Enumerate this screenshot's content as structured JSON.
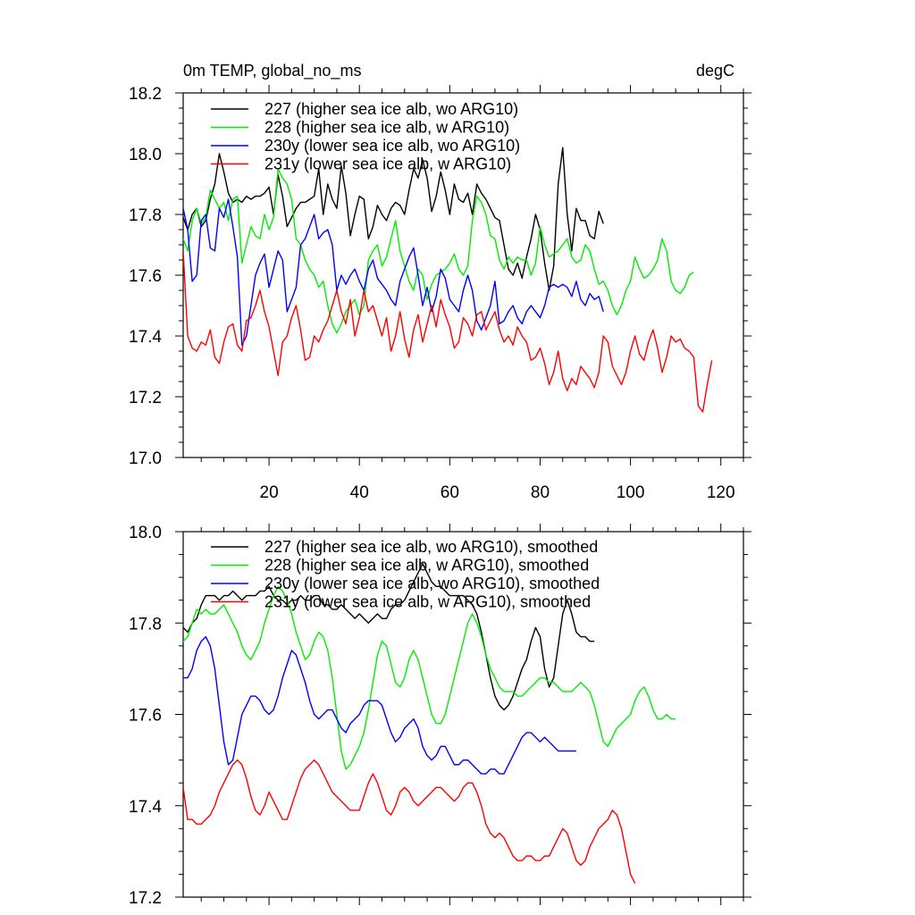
{
  "chart_data": [
    {
      "type": "line",
      "title_left": "0m TEMP, global_no_ms",
      "title_right": "degC",
      "xlabel": "",
      "ylabel": "",
      "xlim": [
        1,
        125
      ],
      "ylim": [
        17.0,
        18.2
      ],
      "x_ticks": [
        20,
        40,
        60,
        80,
        100,
        120
      ],
      "x_tick_labels": [
        "20",
        "40",
        "60",
        "80",
        "100",
        "120"
      ],
      "y_ticks": [
        17.0,
        17.2,
        17.4,
        17.6,
        17.8,
        18.0,
        18.2
      ],
      "y_tick_labels": [
        "17.0",
        "17.2",
        "17.4",
        "17.6",
        "17.8",
        "18.0",
        "18.2"
      ],
      "legend_position": "top-left",
      "series": [
        {
          "name": "227 (higher sea ice alb, wo ARG10)",
          "color": "#000000",
          "values": [
            17.79,
            17.75,
            17.8,
            17.82,
            17.76,
            17.78,
            17.85,
            17.9,
            18.0,
            17.94,
            17.87,
            17.84,
            17.85,
            17.84,
            17.86,
            17.85,
            17.86,
            17.86,
            17.87,
            17.89,
            17.8,
            17.93,
            17.86,
            17.76,
            17.79,
            17.82,
            17.84,
            17.84,
            17.85,
            17.86,
            17.95,
            17.8,
            17.9,
            17.85,
            17.82,
            17.96,
            17.87,
            17.73,
            17.8,
            17.86,
            17.85,
            17.72,
            17.76,
            17.83,
            17.8,
            17.78,
            17.82,
            17.84,
            17.83,
            17.8,
            17.88,
            17.95,
            17.92,
            17.98,
            17.92,
            17.81,
            17.86,
            17.94,
            17.88,
            17.8,
            17.9,
            17.85,
            17.84,
            17.87,
            17.8,
            17.9,
            17.87,
            17.85,
            17.82,
            17.79,
            17.78,
            17.7,
            17.62,
            17.6,
            17.64,
            17.59,
            17.66,
            17.72,
            17.8,
            17.75,
            17.64,
            17.55,
            17.63,
            17.9,
            18.02,
            17.8,
            17.68,
            17.82,
            17.78,
            17.78,
            17.73,
            17.72,
            17.81,
            17.77
          ]
        },
        {
          "name": "228 (higher sea ice alb, w ARG10)",
          "color": "#00ee00",
          "values": [
            17.72,
            17.68,
            17.78,
            17.82,
            17.77,
            17.79,
            17.88,
            17.85,
            17.82,
            17.84,
            17.78,
            17.85,
            17.86,
            17.64,
            17.7,
            17.76,
            17.73,
            17.72,
            17.8,
            17.75,
            17.79,
            17.95,
            17.92,
            17.9,
            17.85,
            17.72,
            17.7,
            17.65,
            17.62,
            17.6,
            17.56,
            17.58,
            17.5,
            17.44,
            17.41,
            17.44,
            17.48,
            17.5,
            17.52,
            17.47,
            17.5,
            17.65,
            17.68,
            17.7,
            17.63,
            17.66,
            17.72,
            17.78,
            17.68,
            17.63,
            17.58,
            17.55,
            17.62,
            17.6,
            17.52,
            17.57,
            17.6,
            17.61,
            17.62,
            17.64,
            17.67,
            17.62,
            17.6,
            17.63,
            17.78,
            17.86,
            17.84,
            17.8,
            17.73,
            17.72,
            17.65,
            17.62,
            17.66,
            17.64,
            17.66,
            17.65,
            17.65,
            17.6,
            17.64,
            17.76,
            17.7,
            17.66,
            17.67,
            17.68,
            17.7,
            17.72,
            17.66,
            17.64,
            17.65,
            17.7,
            17.68,
            17.62,
            17.57,
            17.58,
            17.55,
            17.5,
            17.47,
            17.5,
            17.55,
            17.58,
            17.66,
            17.62,
            17.59,
            17.6,
            17.62,
            17.65,
            17.72,
            17.68,
            17.58,
            17.55,
            17.54,
            17.56,
            17.6,
            17.61
          ]
        },
        {
          "name": "230y (lower sea ice alb, wo ARG10)",
          "color": "#0000ff",
          "values": [
            17.82,
            17.75,
            17.58,
            17.6,
            17.78,
            17.8,
            17.69,
            17.68,
            17.82,
            17.79,
            17.85,
            17.76,
            17.66,
            17.37,
            17.4,
            17.5,
            17.6,
            17.64,
            17.67,
            17.56,
            17.62,
            17.68,
            17.65,
            17.48,
            17.52,
            17.56,
            17.7,
            17.72,
            17.76,
            17.8,
            17.72,
            17.74,
            17.75,
            17.7,
            17.55,
            17.6,
            17.57,
            17.6,
            17.62,
            17.58,
            17.55,
            17.62,
            17.65,
            17.59,
            17.57,
            17.55,
            17.52,
            17.5,
            17.58,
            17.62,
            17.66,
            17.69,
            17.6,
            17.5,
            17.56,
            17.48,
            17.53,
            17.62,
            17.59,
            17.52,
            17.5,
            17.48,
            17.55,
            17.6,
            17.55,
            17.45,
            17.42,
            17.46,
            17.5,
            17.58,
            17.44,
            17.45,
            17.48,
            17.5,
            17.46,
            17.44,
            17.48,
            17.5,
            17.48,
            17.46,
            17.5,
            17.56,
            17.57,
            17.56,
            17.57,
            17.56,
            17.53,
            17.58,
            17.52,
            17.5,
            17.54,
            17.52,
            17.53,
            17.48
          ]
        },
        {
          "name": "231y (lower sea ice alb, w ARG10)",
          "color": "#ff0000",
          "values": [
            17.68,
            17.4,
            17.36,
            17.35,
            17.38,
            17.37,
            17.42,
            17.33,
            17.31,
            17.38,
            17.43,
            17.44,
            17.37,
            17.35,
            17.45,
            17.46,
            17.5,
            17.55,
            17.48,
            17.43,
            17.35,
            17.27,
            17.38,
            17.4,
            17.46,
            17.5,
            17.42,
            17.32,
            17.33,
            17.4,
            17.38,
            17.42,
            17.45,
            17.5,
            17.55,
            17.48,
            17.44,
            17.52,
            17.4,
            17.46,
            17.55,
            17.48,
            17.5,
            17.45,
            17.4,
            17.46,
            17.35,
            17.4,
            17.48,
            17.39,
            17.33,
            17.42,
            17.47,
            17.38,
            17.44,
            17.5,
            17.43,
            17.52,
            17.47,
            17.43,
            17.36,
            17.38,
            17.46,
            17.44,
            17.4,
            17.47,
            17.48,
            17.42,
            17.45,
            17.48,
            17.42,
            17.38,
            17.4,
            17.37,
            17.43,
            17.4,
            17.38,
            17.32,
            17.33,
            17.36,
            17.31,
            17.24,
            17.28,
            17.35,
            17.26,
            17.22,
            17.26,
            17.24,
            17.3,
            17.28,
            17.26,
            17.23,
            17.28,
            17.4,
            17.38,
            17.3,
            17.27,
            17.24,
            17.28,
            17.35,
            17.4,
            17.34,
            17.32,
            17.38,
            17.42,
            17.36,
            17.28,
            17.33,
            17.4,
            17.38,
            17.39,
            17.36,
            17.35,
            17.33,
            17.17,
            17.15,
            17.24,
            17.32
          ]
        }
      ]
    },
    {
      "type": "line",
      "title": "",
      "xlabel": "",
      "ylabel": "",
      "xlim": [
        1,
        125
      ],
      "ylim": [
        17.2,
        18.0
      ],
      "x_ticks": [
        20,
        40,
        60,
        80,
        100,
        120
      ],
      "y_ticks": [
        17.2,
        17.4,
        17.6,
        17.8,
        18.0
      ],
      "y_tick_labels": [
        "17.2",
        "17.4",
        "17.6",
        "17.8",
        "18.0"
      ],
      "legend_position": "top-left",
      "series": [
        {
          "name": "227 (higher sea ice alb, wo ARG10), smoothed",
          "color": "#000000",
          "values": [
            17.79,
            17.78,
            17.8,
            17.81,
            17.84,
            17.86,
            17.86,
            17.86,
            17.85,
            17.86,
            17.86,
            17.87,
            17.86,
            17.85,
            17.86,
            17.86,
            17.86,
            17.87,
            17.87,
            17.88,
            17.86,
            17.85,
            17.85,
            17.84,
            17.85,
            17.85,
            17.86,
            17.85,
            17.85,
            17.86,
            17.86,
            17.84,
            17.84,
            17.83,
            17.83,
            17.84,
            17.83,
            17.82,
            17.81,
            17.82,
            17.81,
            17.8,
            17.81,
            17.82,
            17.81,
            17.81,
            17.83,
            17.84,
            17.84,
            17.85,
            17.87,
            17.89,
            17.91,
            17.93,
            17.91,
            17.89,
            17.88,
            17.88,
            17.87,
            17.86,
            17.86,
            17.86,
            17.86,
            17.85,
            17.84,
            17.82,
            17.78,
            17.73,
            17.68,
            17.64,
            17.62,
            17.61,
            17.62,
            17.64,
            17.67,
            17.7,
            17.72,
            17.76,
            17.79,
            17.77,
            17.7,
            17.66,
            17.68,
            17.75,
            17.82,
            17.85,
            17.82,
            17.78,
            17.77,
            17.77,
            17.76,
            17.76
          ]
        },
        {
          "name": "228 (higher sea ice alb, w ARG10), smoothed",
          "color": "#00ee00",
          "values": [
            17.76,
            17.77,
            17.8,
            17.83,
            17.82,
            17.83,
            17.82,
            17.82,
            17.83,
            17.84,
            17.82,
            17.8,
            17.78,
            17.75,
            17.73,
            17.72,
            17.74,
            17.76,
            17.8,
            17.83,
            17.86,
            17.88,
            17.87,
            17.85,
            17.82,
            17.78,
            17.75,
            17.72,
            17.73,
            17.76,
            17.78,
            17.77,
            17.74,
            17.68,
            17.6,
            17.52,
            17.48,
            17.49,
            17.51,
            17.53,
            17.56,
            17.61,
            17.67,
            17.73,
            17.76,
            17.75,
            17.71,
            17.67,
            17.66,
            17.68,
            17.72,
            17.74,
            17.72,
            17.68,
            17.64,
            17.6,
            17.58,
            17.58,
            17.6,
            17.64,
            17.68,
            17.72,
            17.76,
            17.8,
            17.82,
            17.8,
            17.77,
            17.73,
            17.7,
            17.68,
            17.66,
            17.65,
            17.65,
            17.65,
            17.64,
            17.64,
            17.65,
            17.66,
            17.67,
            17.68,
            17.68,
            17.67,
            17.67,
            17.66,
            17.65,
            17.65,
            17.65,
            17.66,
            17.67,
            17.66,
            17.65,
            17.62,
            17.58,
            17.54,
            17.53,
            17.55,
            17.57,
            17.58,
            17.59,
            17.6,
            17.63,
            17.65,
            17.66,
            17.64,
            17.61,
            17.59,
            17.59,
            17.6,
            17.59,
            17.59
          ]
        },
        {
          "name": "230y (lower sea ice alb, wo ARG10), smoothed",
          "color": "#0000ff",
          "values": [
            17.68,
            17.68,
            17.7,
            17.74,
            17.76,
            17.77,
            17.75,
            17.7,
            17.62,
            17.54,
            17.49,
            17.5,
            17.55,
            17.6,
            17.62,
            17.64,
            17.64,
            17.63,
            17.61,
            17.6,
            17.61,
            17.64,
            17.68,
            17.71,
            17.74,
            17.73,
            17.7,
            17.67,
            17.63,
            17.6,
            17.59,
            17.6,
            17.61,
            17.61,
            17.59,
            17.57,
            17.56,
            17.58,
            17.59,
            17.6,
            17.62,
            17.63,
            17.63,
            17.63,
            17.62,
            17.59,
            17.56,
            17.54,
            17.55,
            17.57,
            17.58,
            17.59,
            17.57,
            17.53,
            17.51,
            17.5,
            17.51,
            17.53,
            17.53,
            17.51,
            17.49,
            17.49,
            17.5,
            17.5,
            17.49,
            17.48,
            17.47,
            17.47,
            17.48,
            17.48,
            17.47,
            17.47,
            17.49,
            17.51,
            17.53,
            17.55,
            17.56,
            17.56,
            17.55,
            17.54,
            17.55,
            17.54,
            17.53,
            17.52,
            17.52,
            17.52,
            17.52,
            17.52
          ]
        },
        {
          "name": "231y (lower sea ice alb, w ARG10), smoothed",
          "color": "#ff0000",
          "values": [
            17.44,
            17.37,
            17.37,
            17.36,
            17.36,
            17.37,
            17.38,
            17.4,
            17.43,
            17.45,
            17.47,
            17.49,
            17.5,
            17.49,
            17.46,
            17.42,
            17.39,
            17.38,
            17.4,
            17.43,
            17.41,
            17.39,
            17.37,
            17.37,
            17.4,
            17.43,
            17.46,
            17.48,
            17.49,
            17.5,
            17.49,
            17.47,
            17.45,
            17.43,
            17.42,
            17.41,
            17.4,
            17.39,
            17.39,
            17.39,
            17.42,
            17.45,
            17.47,
            17.45,
            17.42,
            17.39,
            17.38,
            17.4,
            17.43,
            17.44,
            17.43,
            17.41,
            17.4,
            17.41,
            17.42,
            17.43,
            17.44,
            17.44,
            17.43,
            17.42,
            17.41,
            17.42,
            17.44,
            17.45,
            17.45,
            17.43,
            17.4,
            17.36,
            17.34,
            17.33,
            17.34,
            17.33,
            17.31,
            17.29,
            17.28,
            17.28,
            17.29,
            17.29,
            17.28,
            17.28,
            17.29,
            17.29,
            17.31,
            17.33,
            17.35,
            17.34,
            17.31,
            17.28,
            17.27,
            17.28,
            17.31,
            17.33,
            17.35,
            17.36,
            17.37,
            17.39,
            17.38,
            17.35,
            17.3,
            17.25,
            17.23
          ]
        }
      ]
    }
  ]
}
